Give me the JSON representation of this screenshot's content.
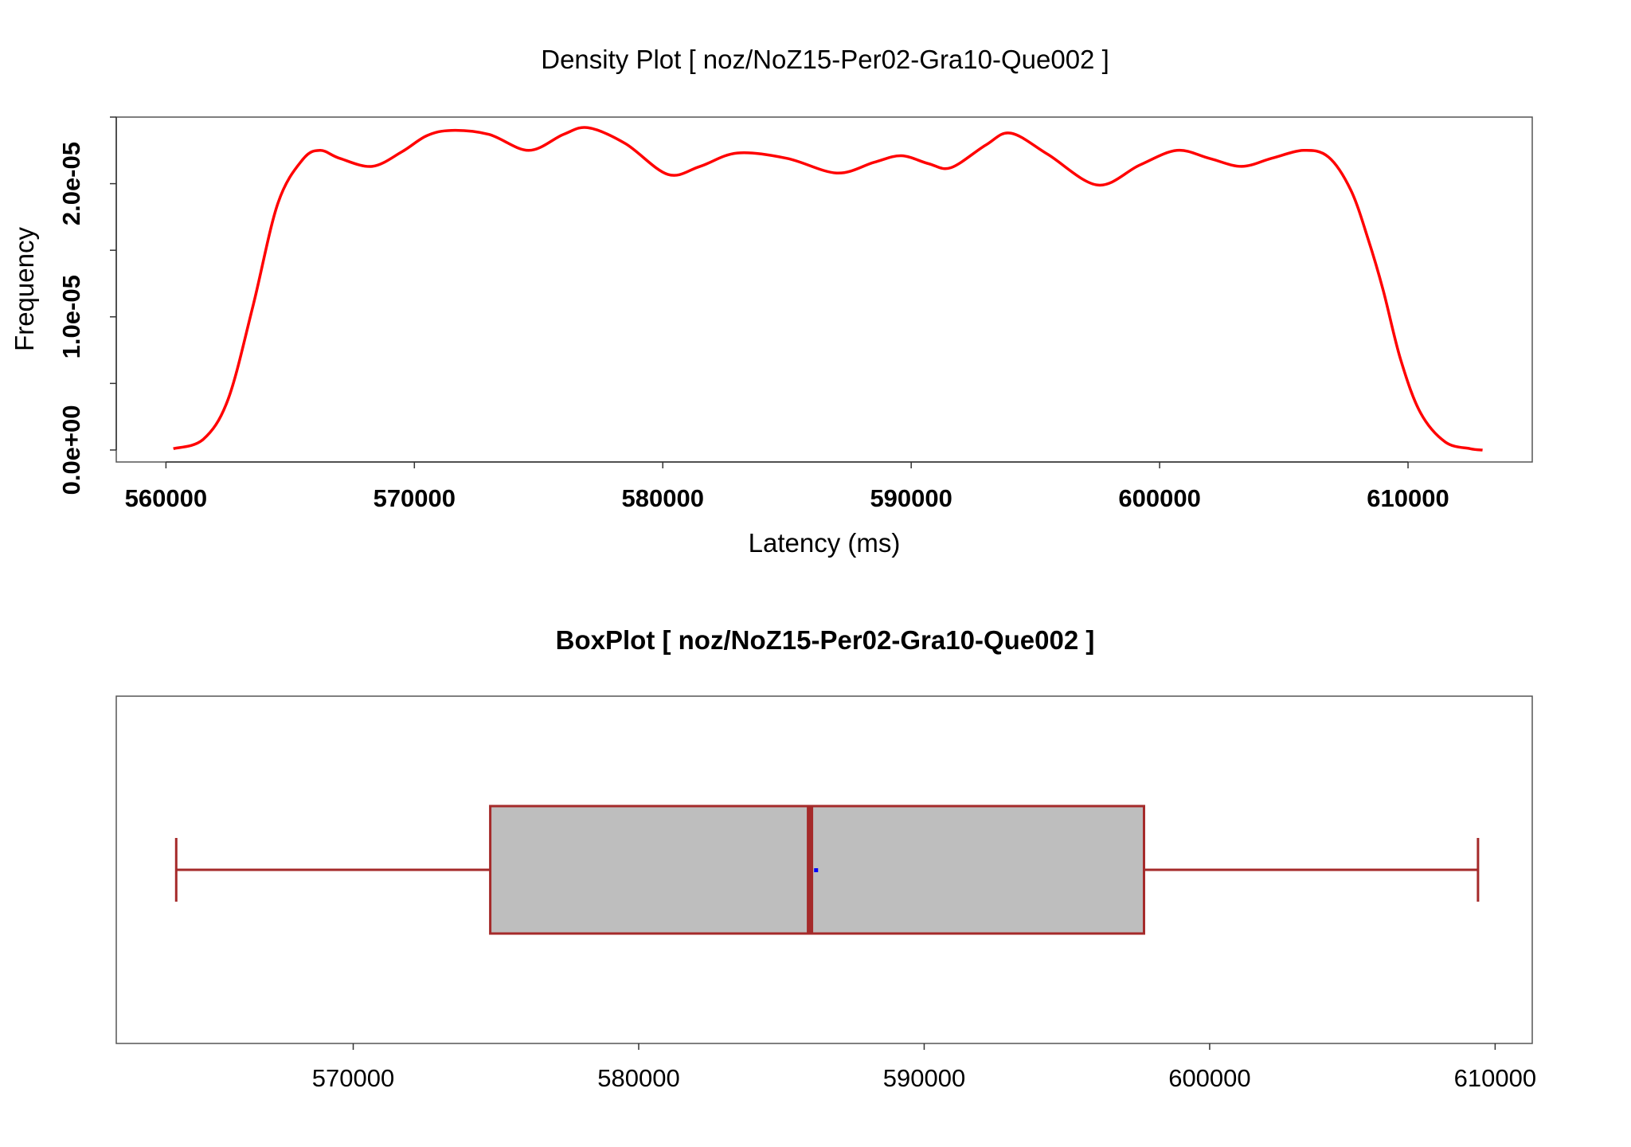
{
  "chart_data": [
    {
      "type": "line",
      "title": "Density Plot [ noz/NoZ15-Per02-Gra10-Que002 ]",
      "xlabel": "Latency (ms)",
      "ylabel": "Frequency",
      "xlim": [
        558000,
        615000
      ],
      "ylim": [
        -9e-07,
        2.5e-05
      ],
      "xticks": [
        560000,
        570000,
        580000,
        590000,
        600000,
        610000
      ],
      "xtick_labels": [
        "560000",
        "570000",
        "580000",
        "590000",
        "600000",
        "610000"
      ],
      "yticks": [
        0,
        5e-06,
        1e-05,
        1.5e-05,
        2e-05,
        2.5e-05
      ],
      "ytick_labels": [
        "0.0e+00",
        "1.0e-05",
        "2.0e-05"
      ],
      "ytick_labeled": [
        0,
        1e-05,
        2e-05
      ],
      "line_color": "#ff0000",
      "x": [
        560300,
        561500,
        562500,
        563500,
        564500,
        565500,
        566200,
        567000,
        568300,
        569500,
        570500,
        571500,
        573000,
        574600,
        576000,
        577000,
        578500,
        580200,
        581500,
        583000,
        585000,
        587000,
        588500,
        589600,
        590700,
        591600,
        593000,
        594000,
        595500,
        597500,
        599200,
        600700,
        602000,
        603300,
        604500,
        605800,
        606800,
        607700,
        608400,
        609000,
        609700,
        610500,
        611500,
        612500,
        613000
      ],
      "y": [
        1e-07,
        8e-07,
        3.8e-06,
        1.08e-05,
        1.85e-05,
        2.18e-05,
        2.25e-05,
        2.19e-05,
        2.13e-05,
        2.24e-05,
        2.36e-05,
        2.4e-05,
        2.37e-05,
        2.25e-05,
        2.37e-05,
        2.42e-05,
        2.3e-05,
        2.07e-05,
        2.13e-05,
        2.23e-05,
        2.19e-05,
        2.08e-05,
        2.16e-05,
        2.21e-05,
        2.15e-05,
        2.12e-05,
        2.29e-05,
        2.38e-05,
        2.22e-05,
        1.99e-05,
        2.14e-05,
        2.25e-05,
        2.19e-05,
        2.13e-05,
        2.19e-05,
        2.25e-05,
        2.2e-05,
        1.95e-05,
        1.58e-05,
        1.2e-05,
        6.8e-06,
        2.8e-06,
        6e-07,
        1e-07,
        0.0
      ]
    },
    {
      "type": "box",
      "title": "BoxPlot [ noz/NoZ15-Per02-Gra10-Que002 ]",
      "xlim": [
        561700,
        611300
      ],
      "xticks": [
        570000,
        580000,
        590000,
        600000,
        610000
      ],
      "xtick_labels": [
        "570000",
        "580000",
        "590000",
        "600000",
        "610000"
      ],
      "whisker_low": 563800,
      "q1": 574800,
      "median": 586000,
      "q3": 597700,
      "whisker_high": 609400,
      "mean": 586200,
      "box_fill": "#bebebe",
      "box_stroke": "#a52a2a",
      "mean_color": "#0000ff"
    }
  ]
}
